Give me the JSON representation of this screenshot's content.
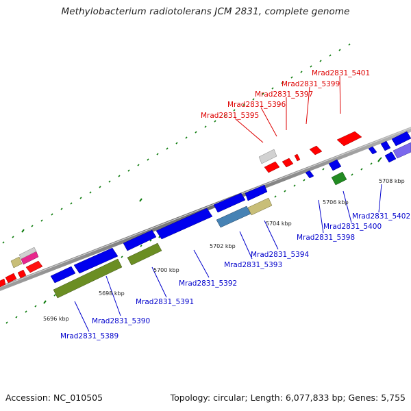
{
  "title": "Methylobacterium radiotolerans JCM 2831, complete genome",
  "footer": {
    "accession": "Accession: NC_010505",
    "summary": "Topology: circular; Length: 6,077,833 bp; Genes: 5,755"
  },
  "colors": {
    "forward_label": "#dd0000",
    "reverse_label": "#0000cc",
    "tick": "#0a7a0a",
    "backbone": "#8c8c8c"
  },
  "scale_ticks": [
    "5696 kbp",
    "5698 kbp",
    "5700 kbp",
    "5702 kbp",
    "5704 kbp",
    "5706 kbp",
    "5708 kbp"
  ],
  "forward_labels": [
    "Mrad2831_5395",
    "Mrad2831_5396",
    "Mrad2831_5397",
    "Mrad2831_5399",
    "Mrad2831_5401"
  ],
  "reverse_labels": [
    "Mrad2831_5389",
    "Mrad2831_5390",
    "Mrad2831_5391",
    "Mrad2831_5392",
    "Mrad2831_5393",
    "Mrad2831_5394",
    "Mrad2831_5398",
    "Mrad2831_5400",
    "Mrad2831_5402"
  ]
}
